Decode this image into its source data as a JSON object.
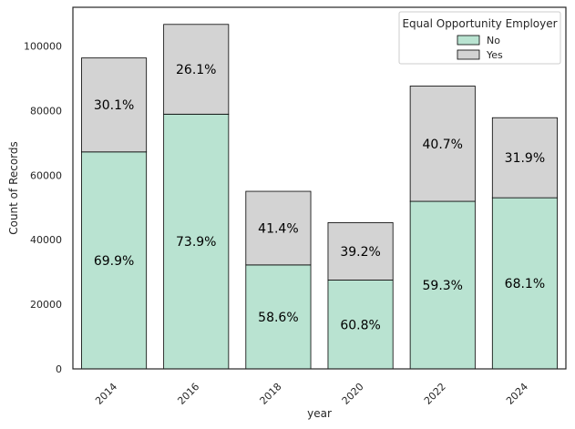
{
  "chart_data": {
    "type": "bar",
    "stacked": true,
    "categories": [
      "2014",
      "2016",
      "2018",
      "2020",
      "2022",
      "2024"
    ],
    "series": [
      {
        "name": "No",
        "color": "#b9e3d1",
        "values": [
          67200,
          78900,
          32200,
          27500,
          51900,
          53000
        ]
      },
      {
        "name": "Yes",
        "color": "#d3d3d3",
        "values": [
          29100,
          27800,
          22800,
          17800,
          35700,
          24800
        ]
      }
    ],
    "percent_labels": {
      "No": [
        "69.9%",
        "73.9%",
        "58.6%",
        "60.8%",
        "59.3%",
        "68.1%"
      ],
      "Yes": [
        "30.1%",
        "26.1%",
        "41.4%",
        "39.2%",
        "40.7%",
        "31.9%"
      ]
    },
    "xlabel": "year",
    "ylabel": "Count of Records",
    "ylim": [
      0,
      112000
    ],
    "yticks": [
      0,
      20000,
      40000,
      60000,
      80000,
      100000
    ],
    "legend": {
      "title": "Equal Opportunity Employer",
      "position": "top-right"
    },
    "grid": false
  }
}
